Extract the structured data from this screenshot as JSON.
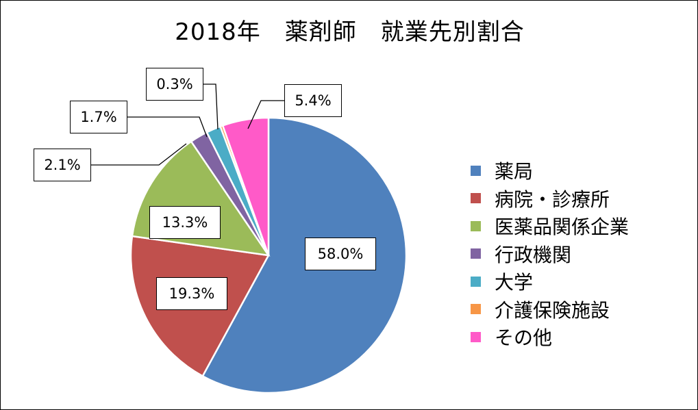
{
  "chart_data": {
    "type": "pie",
    "title": "2018年　薬剤師　就業先別割合",
    "categories": [
      "薬局",
      "病院・診療所",
      "医薬品関係企業",
      "行政機関",
      "大学",
      "介護保険施設",
      "その他"
    ],
    "values": [
      58.0,
      19.3,
      13.3,
      2.1,
      1.7,
      0.3,
      5.4
    ],
    "data_labels": [
      "58.0%",
      "19.3%",
      "13.3%",
      "2.1%",
      "1.7%",
      "0.3%",
      "5.4%"
    ],
    "colors": [
      "#4F81BD",
      "#C0504D",
      "#9BBB59",
      "#8064A2",
      "#4BACC6",
      "#F79646",
      "#FF5AC8"
    ],
    "legend_position": "right",
    "start_angle": "12 o'clock",
    "direction": "clockwise"
  }
}
